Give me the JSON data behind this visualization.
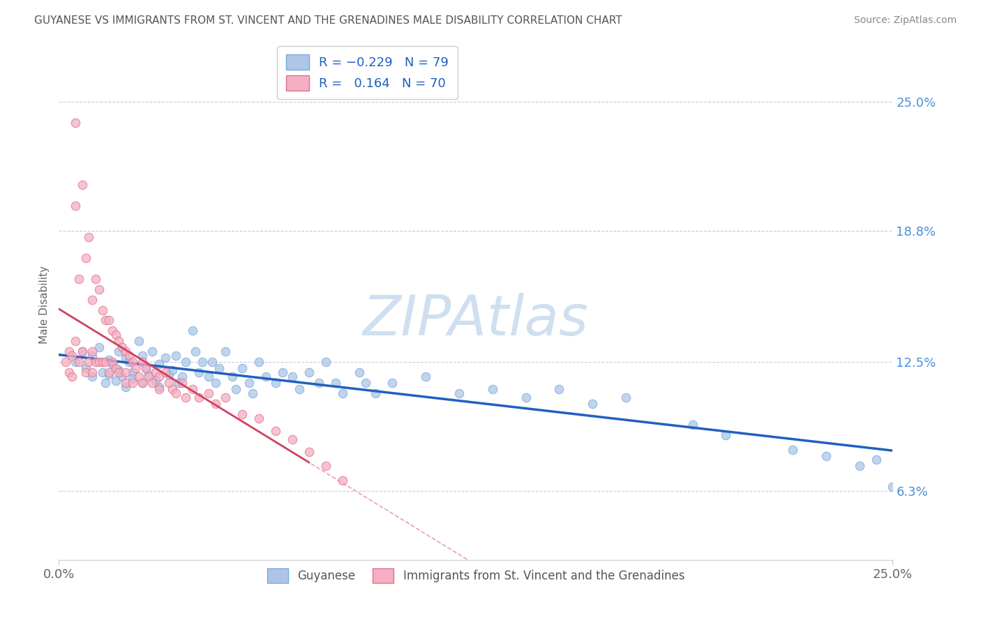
{
  "title": "GUYANESE VS IMMIGRANTS FROM ST. VINCENT AND THE GRENADINES MALE DISABILITY CORRELATION CHART",
  "source": "Source: ZipAtlas.com",
  "ylabel": "Male Disability",
  "yticks": [
    0.063,
    0.125,
    0.188,
    0.25
  ],
  "ytick_labels": [
    "6.3%",
    "12.5%",
    "18.8%",
    "25.0%"
  ],
  "xmin": 0.0,
  "xmax": 0.25,
  "ymin": 0.03,
  "ymax": 0.275,
  "blue_R": -0.229,
  "blue_N": 79,
  "pink_R": 0.164,
  "pink_N": 70,
  "blue_color": "#adc6e8",
  "pink_color": "#f5afc0",
  "blue_edge_color": "#7aa8d8",
  "pink_edge_color": "#e07090",
  "blue_line_color": "#2060c0",
  "pink_line_color": "#d04060",
  "pink_dash_color": "#e8a0b0",
  "watermark": "ZIPAtlas",
  "watermark_color": "#d0dff0",
  "legend_label_blue": "Guyanese",
  "legend_label_pink": "Immigrants from St. Vincent and the Grenadines",
  "blue_scatter_x": [
    0.005,
    0.007,
    0.008,
    0.01,
    0.01,
    0.012,
    0.013,
    0.014,
    0.015,
    0.015,
    0.016,
    0.017,
    0.018,
    0.018,
    0.019,
    0.02,
    0.02,
    0.021,
    0.022,
    0.022,
    0.024,
    0.025,
    0.025,
    0.026,
    0.027,
    0.028,
    0.029,
    0.03,
    0.03,
    0.032,
    0.033,
    0.034,
    0.035,
    0.036,
    0.037,
    0.038,
    0.04,
    0.041,
    0.042,
    0.043,
    0.045,
    0.046,
    0.047,
    0.048,
    0.05,
    0.052,
    0.053,
    0.055,
    0.057,
    0.058,
    0.06,
    0.062,
    0.065,
    0.067,
    0.07,
    0.072,
    0.075,
    0.078,
    0.08,
    0.083,
    0.085,
    0.09,
    0.092,
    0.095,
    0.1,
    0.11,
    0.12,
    0.13,
    0.14,
    0.15,
    0.16,
    0.17,
    0.19,
    0.2,
    0.22,
    0.23,
    0.24,
    0.245,
    0.25
  ],
  "blue_scatter_y": [
    0.125,
    0.13,
    0.122,
    0.128,
    0.118,
    0.132,
    0.12,
    0.115,
    0.126,
    0.119,
    0.124,
    0.116,
    0.13,
    0.121,
    0.118,
    0.127,
    0.113,
    0.125,
    0.12,
    0.117,
    0.135,
    0.128,
    0.115,
    0.122,
    0.119,
    0.13,
    0.116,
    0.124,
    0.113,
    0.127,
    0.119,
    0.121,
    0.128,
    0.115,
    0.118,
    0.125,
    0.14,
    0.13,
    0.12,
    0.125,
    0.118,
    0.125,
    0.115,
    0.122,
    0.13,
    0.118,
    0.112,
    0.122,
    0.115,
    0.11,
    0.125,
    0.118,
    0.115,
    0.12,
    0.118,
    0.112,
    0.12,
    0.115,
    0.125,
    0.115,
    0.11,
    0.12,
    0.115,
    0.11,
    0.115,
    0.118,
    0.11,
    0.112,
    0.108,
    0.112,
    0.105,
    0.108,
    0.095,
    0.09,
    0.083,
    0.08,
    0.075,
    0.078,
    0.065
  ],
  "pink_scatter_x": [
    0.002,
    0.003,
    0.003,
    0.004,
    0.004,
    0.005,
    0.005,
    0.005,
    0.006,
    0.006,
    0.007,
    0.007,
    0.008,
    0.008,
    0.009,
    0.009,
    0.01,
    0.01,
    0.01,
    0.011,
    0.011,
    0.012,
    0.012,
    0.013,
    0.013,
    0.014,
    0.014,
    0.015,
    0.015,
    0.016,
    0.016,
    0.017,
    0.017,
    0.018,
    0.018,
    0.019,
    0.02,
    0.02,
    0.02,
    0.021,
    0.022,
    0.022,
    0.023,
    0.024,
    0.025,
    0.025,
    0.026,
    0.027,
    0.028,
    0.029,
    0.03,
    0.03,
    0.032,
    0.033,
    0.034,
    0.035,
    0.037,
    0.038,
    0.04,
    0.042,
    0.045,
    0.047,
    0.05,
    0.055,
    0.06,
    0.065,
    0.07,
    0.075,
    0.08,
    0.085
  ],
  "pink_scatter_y": [
    0.125,
    0.13,
    0.12,
    0.128,
    0.118,
    0.24,
    0.2,
    0.135,
    0.165,
    0.125,
    0.21,
    0.13,
    0.175,
    0.12,
    0.185,
    0.125,
    0.155,
    0.13,
    0.12,
    0.165,
    0.125,
    0.16,
    0.125,
    0.15,
    0.125,
    0.145,
    0.125,
    0.145,
    0.12,
    0.14,
    0.125,
    0.138,
    0.122,
    0.135,
    0.12,
    0.132,
    0.13,
    0.12,
    0.115,
    0.128,
    0.125,
    0.115,
    0.122,
    0.118,
    0.125,
    0.115,
    0.122,
    0.118,
    0.115,
    0.12,
    0.118,
    0.112,
    0.12,
    0.115,
    0.112,
    0.11,
    0.115,
    0.108,
    0.112,
    0.108,
    0.11,
    0.105,
    0.108,
    0.1,
    0.098,
    0.092,
    0.088,
    0.082,
    0.075,
    0.068
  ]
}
